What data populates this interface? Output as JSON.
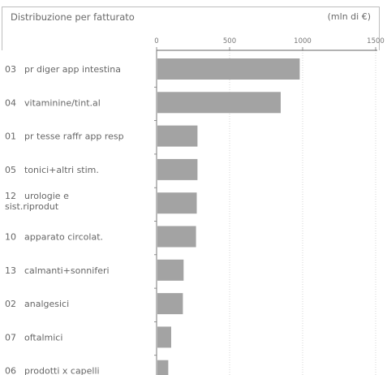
{
  "header": {
    "title": "Distribuzione per fatturato",
    "unit": "(mln di €)"
  },
  "chart_data": {
    "type": "bar",
    "orientation": "horizontal",
    "title": "Distribuzione per fatturato",
    "unit": "(mln di €)",
    "xlabel": "",
    "ylabel": "",
    "xlim": [
      0,
      1500
    ],
    "x_ticks": [
      0,
      500,
      1000,
      1500
    ],
    "x_tick_labels": [
      "0",
      "500",
      "1000",
      "1500"
    ],
    "grid": true,
    "categories": [
      [
        "03",
        "pr diger app intestina"
      ],
      [
        "04",
        "vitaminine/tint.al"
      ],
      [
        "01",
        "pr tesse raffr app resp"
      ],
      [
        "05",
        "tonici+altri stim."
      ],
      [
        "12",
        "urologie e",
        "sist.riprodut"
      ],
      [
        "10",
        "apparato circolat."
      ],
      [
        "13",
        "calmanti+sonniferi"
      ],
      [
        "02",
        "analgesici"
      ],
      [
        "07",
        "oftalmici"
      ],
      [
        "06",
        "prodotti x capelli"
      ]
    ],
    "values": [
      980,
      850,
      280,
      280,
      275,
      270,
      185,
      180,
      100,
      80
    ],
    "bar_color": "#a3a3a3"
  }
}
